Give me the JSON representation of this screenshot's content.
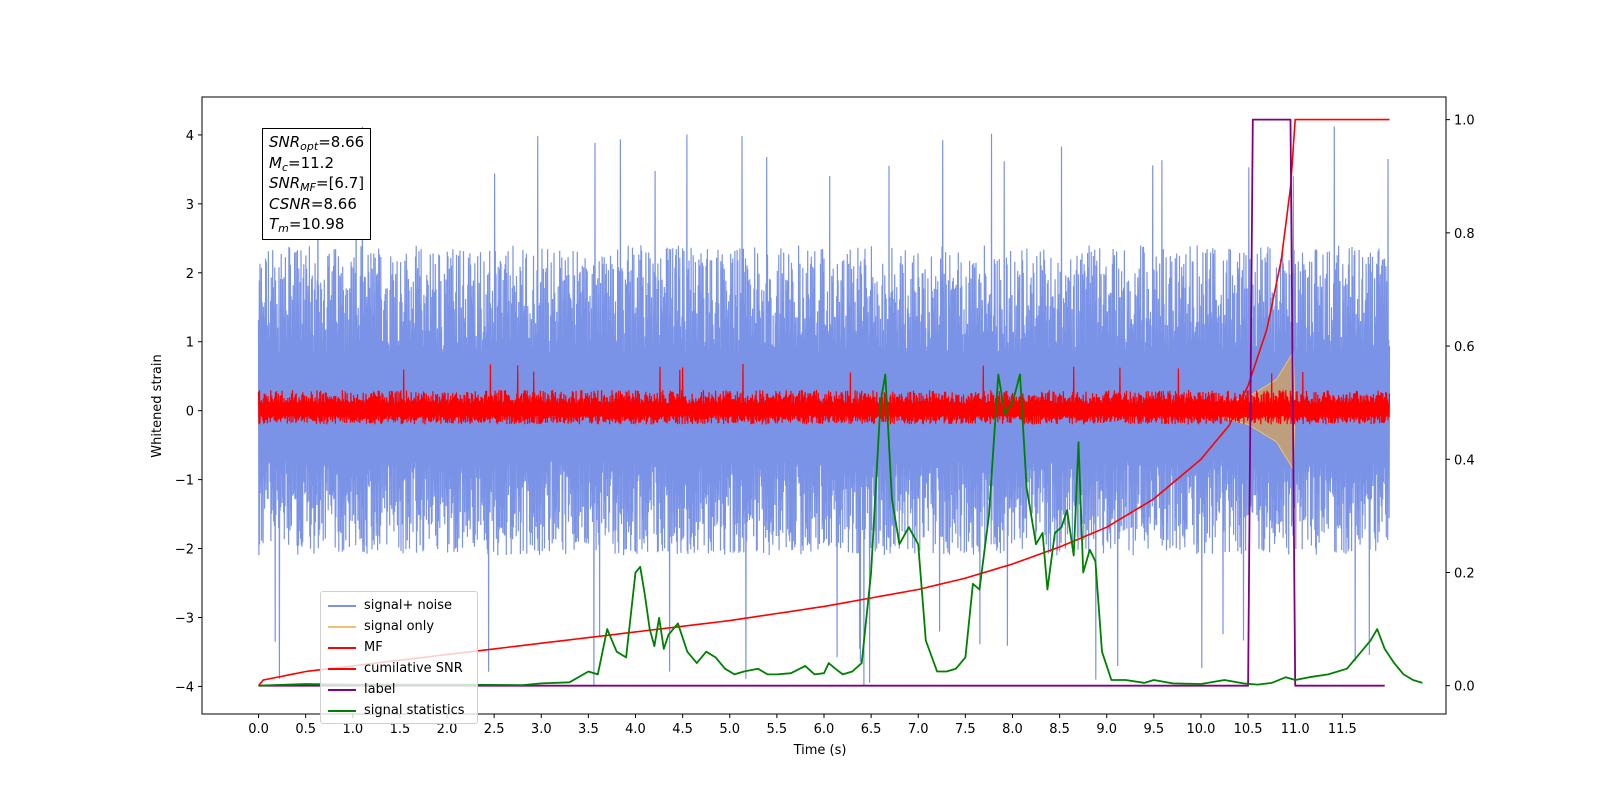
{
  "chart_data": {
    "type": "line",
    "xlabel": "Time (s)",
    "ylabel_left": "Whitened strain",
    "ylabel_right": "",
    "xlim": [
      -0.6,
      12.6
    ],
    "ylim_left": [
      -4.4,
      4.55
    ],
    "ylim_right": [
      -0.05,
      1.04
    ],
    "x_ticks": [
      "0.0",
      "0.5",
      "1.0",
      "1.5",
      "2.0",
      "2.5",
      "3.0",
      "3.5",
      "4.0",
      "4.5",
      "5.0",
      "5.5",
      "6.0",
      "6.5",
      "7.0",
      "7.5",
      "8.0",
      "8.5",
      "9.0",
      "9.5",
      "10.0",
      "10.5",
      "11.0",
      "11.5"
    ],
    "y_ticks_left": [
      "−4",
      "−3",
      "−2",
      "−1",
      "0",
      "1",
      "2",
      "3",
      "4"
    ],
    "y_ticks_right": [
      "0.0",
      "0.2",
      "0.4",
      "0.6",
      "0.8",
      "1.0"
    ],
    "grid": false,
    "legend_placement": "lower-left",
    "annotation": {
      "snr_opt": "8.66",
      "mc": "11.2",
      "snr_mf": "[6.7]",
      "csnr": "8.66",
      "tm": "10.98"
    },
    "series": [
      {
        "name": "signal+ noise",
        "color": "#7b93e6",
        "axis": "left",
        "kind": "noise",
        "t_start": 0.0,
        "t_end": 12.0,
        "band_low": -2.1,
        "band_high": 2.4,
        "max": 4.18,
        "min": -4.0
      },
      {
        "name": "signal only",
        "color": "#f0c070",
        "axis": "left",
        "kind": "chirp",
        "envelope": [
          [
            10.1,
            0.05
          ],
          [
            10.5,
            0.2
          ],
          [
            10.8,
            0.45
          ],
          [
            10.98,
            0.85
          ],
          [
            11.0,
            0.0
          ]
        ]
      },
      {
        "name": "MF",
        "color": "#ff0000",
        "axis": "left",
        "kind": "noise",
        "t_start": 0.0,
        "t_end": 12.0,
        "band_low": -0.2,
        "band_high": 0.3,
        "max": 0.68,
        "min": -0.2
      },
      {
        "name": "cumilative SNR",
        "color": "#ff0000",
        "axis": "right",
        "points": [
          [
            0.0,
            0.0
          ],
          [
            0.05,
            0.01
          ],
          [
            0.5,
            0.025
          ],
          [
            1.0,
            0.035
          ],
          [
            2.0,
            0.055
          ],
          [
            3.0,
            0.075
          ],
          [
            4.0,
            0.095
          ],
          [
            5.0,
            0.115
          ],
          [
            6.0,
            0.14
          ],
          [
            6.5,
            0.155
          ],
          [
            7.0,
            0.17
          ],
          [
            7.5,
            0.19
          ],
          [
            8.0,
            0.215
          ],
          [
            8.5,
            0.245
          ],
          [
            9.0,
            0.28
          ],
          [
            9.5,
            0.33
          ],
          [
            10.0,
            0.4
          ],
          [
            10.3,
            0.46
          ],
          [
            10.5,
            0.53
          ],
          [
            10.7,
            0.63
          ],
          [
            10.85,
            0.75
          ],
          [
            10.95,
            0.88
          ],
          [
            11.0,
            1.0
          ],
          [
            12.0,
            1.0
          ]
        ]
      },
      {
        "name": "label",
        "color": "#800080",
        "axis": "right",
        "points": [
          [
            0.0,
            0.0
          ],
          [
            10.5,
            0.0
          ],
          [
            10.55,
            1.0
          ],
          [
            10.95,
            1.0
          ],
          [
            11.0,
            0.0
          ],
          [
            11.95,
            0.0
          ]
        ]
      },
      {
        "name": "signal statistics",
        "color": "#008000",
        "axis": "right",
        "points": [
          [
            0.0,
            0.0
          ],
          [
            0.5,
            0.003
          ],
          [
            1.0,
            0.002
          ],
          [
            2.0,
            0.002
          ],
          [
            2.8,
            0.001
          ],
          [
            3.0,
            0.004
          ],
          [
            3.3,
            0.006
          ],
          [
            3.5,
            0.025
          ],
          [
            3.6,
            0.02
          ],
          [
            3.7,
            0.1
          ],
          [
            3.8,
            0.06
          ],
          [
            3.9,
            0.05
          ],
          [
            4.0,
            0.2
          ],
          [
            4.05,
            0.21
          ],
          [
            4.1,
            0.16
          ],
          [
            4.15,
            0.1
          ],
          [
            4.2,
            0.07
          ],
          [
            4.25,
            0.12
          ],
          [
            4.3,
            0.065
          ],
          [
            4.35,
            0.09
          ],
          [
            4.45,
            0.11
          ],
          [
            4.55,
            0.06
          ],
          [
            4.65,
            0.04
          ],
          [
            4.75,
            0.06
          ],
          [
            4.85,
            0.05
          ],
          [
            4.95,
            0.03
          ],
          [
            5.05,
            0.02
          ],
          [
            5.15,
            0.025
          ],
          [
            5.3,
            0.03
          ],
          [
            5.4,
            0.02
          ],
          [
            5.5,
            0.02
          ],
          [
            5.65,
            0.022
          ],
          [
            5.8,
            0.035
          ],
          [
            5.9,
            0.02
          ],
          [
            6.0,
            0.022
          ],
          [
            6.05,
            0.04
          ],
          [
            6.12,
            0.03
          ],
          [
            6.2,
            0.02
          ],
          [
            6.3,
            0.025
          ],
          [
            6.4,
            0.04
          ],
          [
            6.5,
            0.2
          ],
          [
            6.6,
            0.5
          ],
          [
            6.65,
            0.55
          ],
          [
            6.72,
            0.33
          ],
          [
            6.8,
            0.25
          ],
          [
            6.9,
            0.28
          ],
          [
            7.0,
            0.25
          ],
          [
            7.08,
            0.08
          ],
          [
            7.2,
            0.025
          ],
          [
            7.3,
            0.025
          ],
          [
            7.4,
            0.03
          ],
          [
            7.5,
            0.05
          ],
          [
            7.58,
            0.18
          ],
          [
            7.65,
            0.17
          ],
          [
            7.75,
            0.3
          ],
          [
            7.85,
            0.55
          ],
          [
            7.92,
            0.48
          ],
          [
            8.0,
            0.5
          ],
          [
            8.08,
            0.55
          ],
          [
            8.15,
            0.35
          ],
          [
            8.25,
            0.25
          ],
          [
            8.32,
            0.27
          ],
          [
            8.37,
            0.17
          ],
          [
            8.45,
            0.27
          ],
          [
            8.52,
            0.28
          ],
          [
            8.58,
            0.31
          ],
          [
            8.65,
            0.23
          ],
          [
            8.7,
            0.43
          ],
          [
            8.75,
            0.2
          ],
          [
            8.82,
            0.24
          ],
          [
            8.88,
            0.22
          ],
          [
            8.95,
            0.06
          ],
          [
            9.05,
            0.01
          ],
          [
            9.2,
            0.01
          ],
          [
            9.4,
            0.005
          ],
          [
            9.5,
            0.01
          ],
          [
            9.7,
            0.004
          ],
          [
            10.0,
            0.003
          ],
          [
            10.25,
            0.01
          ],
          [
            10.45,
            0.004
          ],
          [
            10.6,
            0.002
          ],
          [
            10.75,
            0.005
          ],
          [
            10.9,
            0.015
          ],
          [
            11.0,
            0.01
          ],
          [
            11.15,
            0.015
          ],
          [
            11.35,
            0.02
          ],
          [
            11.55,
            0.03
          ],
          [
            11.7,
            0.06
          ],
          [
            11.8,
            0.08
          ],
          [
            11.87,
            0.1
          ],
          [
            11.95,
            0.065
          ],
          [
            12.05,
            0.04
          ],
          [
            12.15,
            0.02
          ],
          [
            12.25,
            0.01
          ],
          [
            12.35,
            0.005
          ]
        ]
      }
    ]
  }
}
